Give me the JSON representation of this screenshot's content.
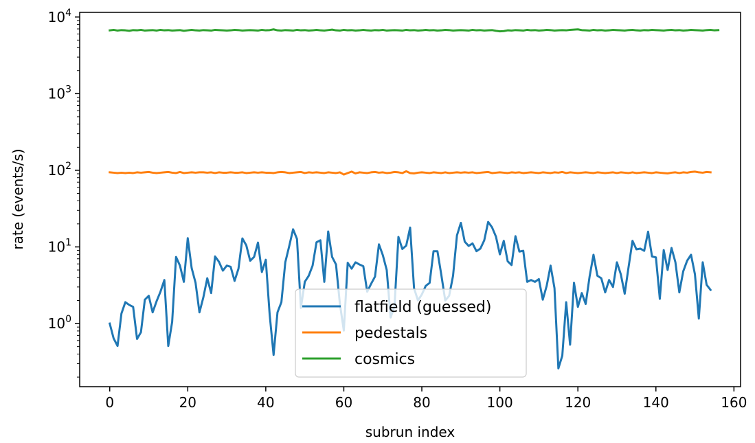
{
  "chart_data": {
    "type": "line",
    "xlabel": "subrun index",
    "ylabel": "rate (events/s)",
    "xlim": [
      -7.7,
      161.7
    ],
    "ylim": [
      0.15,
      11500
    ],
    "y_scale": "log",
    "grid": false,
    "legend_position": "lower-center",
    "x_ticks": [
      0,
      20,
      40,
      60,
      80,
      100,
      120,
      140,
      160
    ],
    "x_tick_labels": [
      "0",
      "20",
      "40",
      "60",
      "80",
      "100",
      "120",
      "140",
      "160"
    ],
    "y_ticks": [
      1,
      10,
      100,
      1000,
      10000
    ],
    "y_tick_labels": [
      {
        "base": "10",
        "exp": "0"
      },
      {
        "base": "10",
        "exp": "1"
      },
      {
        "base": "10",
        "exp": "2"
      },
      {
        "base": "10",
        "exp": "3"
      },
      {
        "base": "10",
        "exp": "4"
      }
    ],
    "series": [
      {
        "name": "flatfield (guessed)",
        "color": "#1f77b4",
        "x_start": 0,
        "values": [
          1.0,
          0.64,
          0.51,
          1.35,
          1.9,
          1.75,
          1.65,
          0.63,
          0.77,
          2.05,
          2.3,
          1.4,
          1.95,
          2.6,
          3.7,
          0.51,
          1.05,
          7.4,
          5.7,
          3.5,
          13.0,
          5.3,
          3.4,
          1.4,
          2.2,
          3.9,
          2.5,
          7.5,
          6.4,
          4.9,
          5.7,
          5.5,
          3.6,
          5.2,
          12.9,
          10.5,
          6.6,
          7.4,
          11.4,
          4.7,
          6.8,
          1.3,
          0.39,
          1.4,
          1.9,
          6.3,
          10.2,
          17.0,
          12.7,
          1.6,
          3.5,
          4.2,
          5.7,
          11.5,
          12.2,
          3.5,
          15.9,
          7.4,
          5.9,
          1.8,
          0.81,
          6.2,
          5.2,
          6.3,
          5.9,
          5.6,
          2.6,
          3.3,
          4.1,
          10.8,
          7.8,
          5.0,
          1.2,
          1.7,
          13.5,
          9.4,
          10.4,
          17.9,
          2.9,
          2.0,
          2.4,
          3.1,
          3.4,
          8.8,
          8.8,
          4.3,
          2.0,
          2.3,
          4.2,
          14.1,
          20.6,
          11.7,
          10.3,
          11.1,
          8.8,
          9.5,
          12.2,
          21.2,
          18.0,
          13.6,
          8.0,
          12.0,
          6.5,
          5.8,
          13.8,
          8.7,
          8.9,
          3.5,
          3.7,
          3.5,
          3.8,
          2.05,
          3.1,
          5.7,
          2.9,
          0.26,
          0.38,
          1.9,
          0.53,
          3.4,
          1.65,
          2.5,
          1.8,
          4.1,
          7.9,
          4.2,
          3.9,
          2.55,
          3.7,
          3.0,
          6.3,
          4.4,
          2.45,
          5.5,
          12.0,
          9.3,
          9.5,
          8.9,
          15.8,
          7.5,
          7.3,
          2.1,
          9.1,
          5.0,
          9.7,
          6.3,
          2.55,
          4.8,
          6.6,
          7.9,
          4.4,
          1.16,
          6.3,
          3.2,
          2.75
        ]
      },
      {
        "name": "pedestals",
        "color": "#ff7f0e",
        "x_start": 0,
        "values": [
          94,
          93,
          92,
          93,
          92,
          93,
          92,
          94,
          93,
          94,
          95,
          93,
          92,
          93,
          94,
          95,
          93,
          92,
          95,
          92,
          93,
          94,
          93,
          94,
          94,
          93,
          94,
          92,
          94,
          93,
          93,
          94,
          93,
          93,
          94,
          92,
          93,
          94,
          93,
          94,
          93,
          93,
          92,
          94,
          95,
          94,
          92,
          93,
          94,
          95,
          92,
          94,
          93,
          94,
          93,
          92,
          94,
          93,
          92,
          94,
          88,
          92,
          96,
          91,
          94,
          93,
          92,
          94,
          95,
          93,
          94,
          92,
          93,
          95,
          94,
          92,
          97,
          92,
          91,
          93,
          94,
          93,
          92,
          94,
          93,
          92,
          94,
          92,
          93,
          94,
          93,
          94,
          93,
          94,
          92,
          93,
          94,
          95,
          92,
          93,
          94,
          93,
          92,
          94,
          93,
          94,
          92,
          93,
          94,
          93,
          92,
          94,
          93,
          92,
          94,
          93,
          95,
          92,
          94,
          93,
          92,
          93,
          94,
          93,
          92,
          94,
          93,
          92,
          93,
          94,
          92,
          94,
          93,
          92,
          94,
          92,
          93,
          94,
          93,
          92,
          94,
          93,
          92,
          91,
          93,
          94,
          92,
          94,
          93,
          95,
          96,
          94,
          93,
          95,
          94
        ]
      },
      {
        "name": "cosmics",
        "color": "#2ca02c",
        "x_start": 0,
        "values": [
          6700,
          6800,
          6650,
          6750,
          6700,
          6600,
          6750,
          6700,
          6800,
          6650,
          6700,
          6750,
          6650,
          6800,
          6700,
          6750,
          6650,
          6700,
          6750,
          6600,
          6700,
          6800,
          6700,
          6650,
          6750,
          6700,
          6650,
          6800,
          6750,
          6700,
          6650,
          6700,
          6800,
          6750,
          6650,
          6700,
          6750,
          6700,
          6650,
          6800,
          6700,
          6750,
          6900,
          6700,
          6650,
          6750,
          6700,
          6650,
          6800,
          6700,
          6750,
          6650,
          6700,
          6800,
          6700,
          6650,
          6750,
          6850,
          6700,
          6650,
          6800,
          6700,
          6750,
          6650,
          6700,
          6800,
          6700,
          6650,
          6750,
          6700,
          6800,
          6650,
          6700,
          6750,
          6700,
          6650,
          6800,
          6700,
          6750,
          6650,
          6700,
          6800,
          6700,
          6750,
          6650,
          6700,
          6800,
          6750,
          6650,
          6700,
          6750,
          6700,
          6650,
          6800,
          6700,
          6750,
          6650,
          6700,
          6750,
          6600,
          6500,
          6550,
          6700,
          6650,
          6750,
          6700,
          6650,
          6800,
          6700,
          6750,
          6650,
          6700,
          6800,
          6750,
          6650,
          6700,
          6750,
          6700,
          6800,
          6850,
          6900,
          6750,
          6700,
          6650,
          6800,
          6700,
          6750,
          6650,
          6700,
          6800,
          6750,
          6700,
          6650,
          6750,
          6800,
          6700,
          6650,
          6750,
          6700,
          6800,
          6750,
          6700,
          6650,
          6750,
          6800,
          6700,
          6750,
          6650,
          6700,
          6800,
          6750,
          6700,
          6650,
          6750,
          6800,
          6700,
          6750
        ]
      }
    ]
  }
}
